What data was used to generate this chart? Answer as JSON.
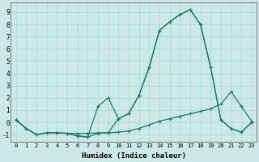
{
  "xlabel": "Humidex (Indice chaleur)",
  "background_color": "#cce9e8",
  "grid_color": "#aad4d3",
  "line_color": "#1a7a6e",
  "xlim": [
    -0.5,
    23.5
  ],
  "ylim": [
    -1.6,
    9.8
  ],
  "xticks": [
    0,
    1,
    2,
    3,
    4,
    5,
    6,
    7,
    8,
    9,
    10,
    11,
    12,
    13,
    14,
    15,
    16,
    17,
    18,
    19,
    20,
    21,
    22,
    23
  ],
  "yticks": [
    -1,
    0,
    1,
    2,
    3,
    4,
    5,
    6,
    7,
    8,
    9
  ],
  "line1_x": [
    0,
    1,
    2,
    3,
    4,
    5,
    6,
    7,
    8,
    9,
    10,
    11,
    12,
    13,
    14,
    15,
    16,
    17,
    18,
    19,
    20,
    21,
    22,
    23
  ],
  "line1_y": [
    0.2,
    -0.5,
    -1.0,
    -0.85,
    -0.85,
    -0.9,
    -0.9,
    -0.9,
    -0.85,
    -0.85,
    -0.8,
    -0.7,
    -0.5,
    -0.2,
    0.1,
    0.3,
    0.5,
    0.7,
    0.9,
    1.1,
    1.5,
    2.5,
    1.3,
    0.1
  ],
  "line2_x": [
    0,
    1,
    2,
    3,
    4,
    5,
    6,
    7,
    8,
    9,
    10,
    11,
    12,
    13,
    14,
    15,
    16,
    17,
    18,
    19,
    20,
    21,
    22,
    23
  ],
  "line2_y": [
    0.2,
    -0.5,
    -1.0,
    -0.85,
    -0.85,
    -0.9,
    -1.1,
    -1.2,
    1.3,
    2.0,
    0.3,
    0.7,
    2.2,
    4.5,
    7.5,
    8.2,
    8.8,
    9.2,
    8.0,
    4.5,
    0.2,
    -0.5,
    -0.8,
    0.0
  ],
  "line3_x": [
    0,
    1,
    2,
    3,
    4,
    5,
    6,
    7,
    8,
    9,
    10,
    11,
    12,
    13,
    14,
    15,
    16,
    17,
    18,
    19,
    20,
    21,
    22,
    23
  ],
  "line3_y": [
    0.2,
    -0.5,
    -1.0,
    -0.85,
    -0.85,
    -0.9,
    -1.1,
    -1.2,
    -0.9,
    -0.85,
    0.3,
    0.7,
    2.2,
    4.5,
    7.5,
    8.2,
    8.8,
    9.2,
    8.0,
    4.5,
    0.2,
    -0.5,
    -0.8,
    0.0
  ]
}
